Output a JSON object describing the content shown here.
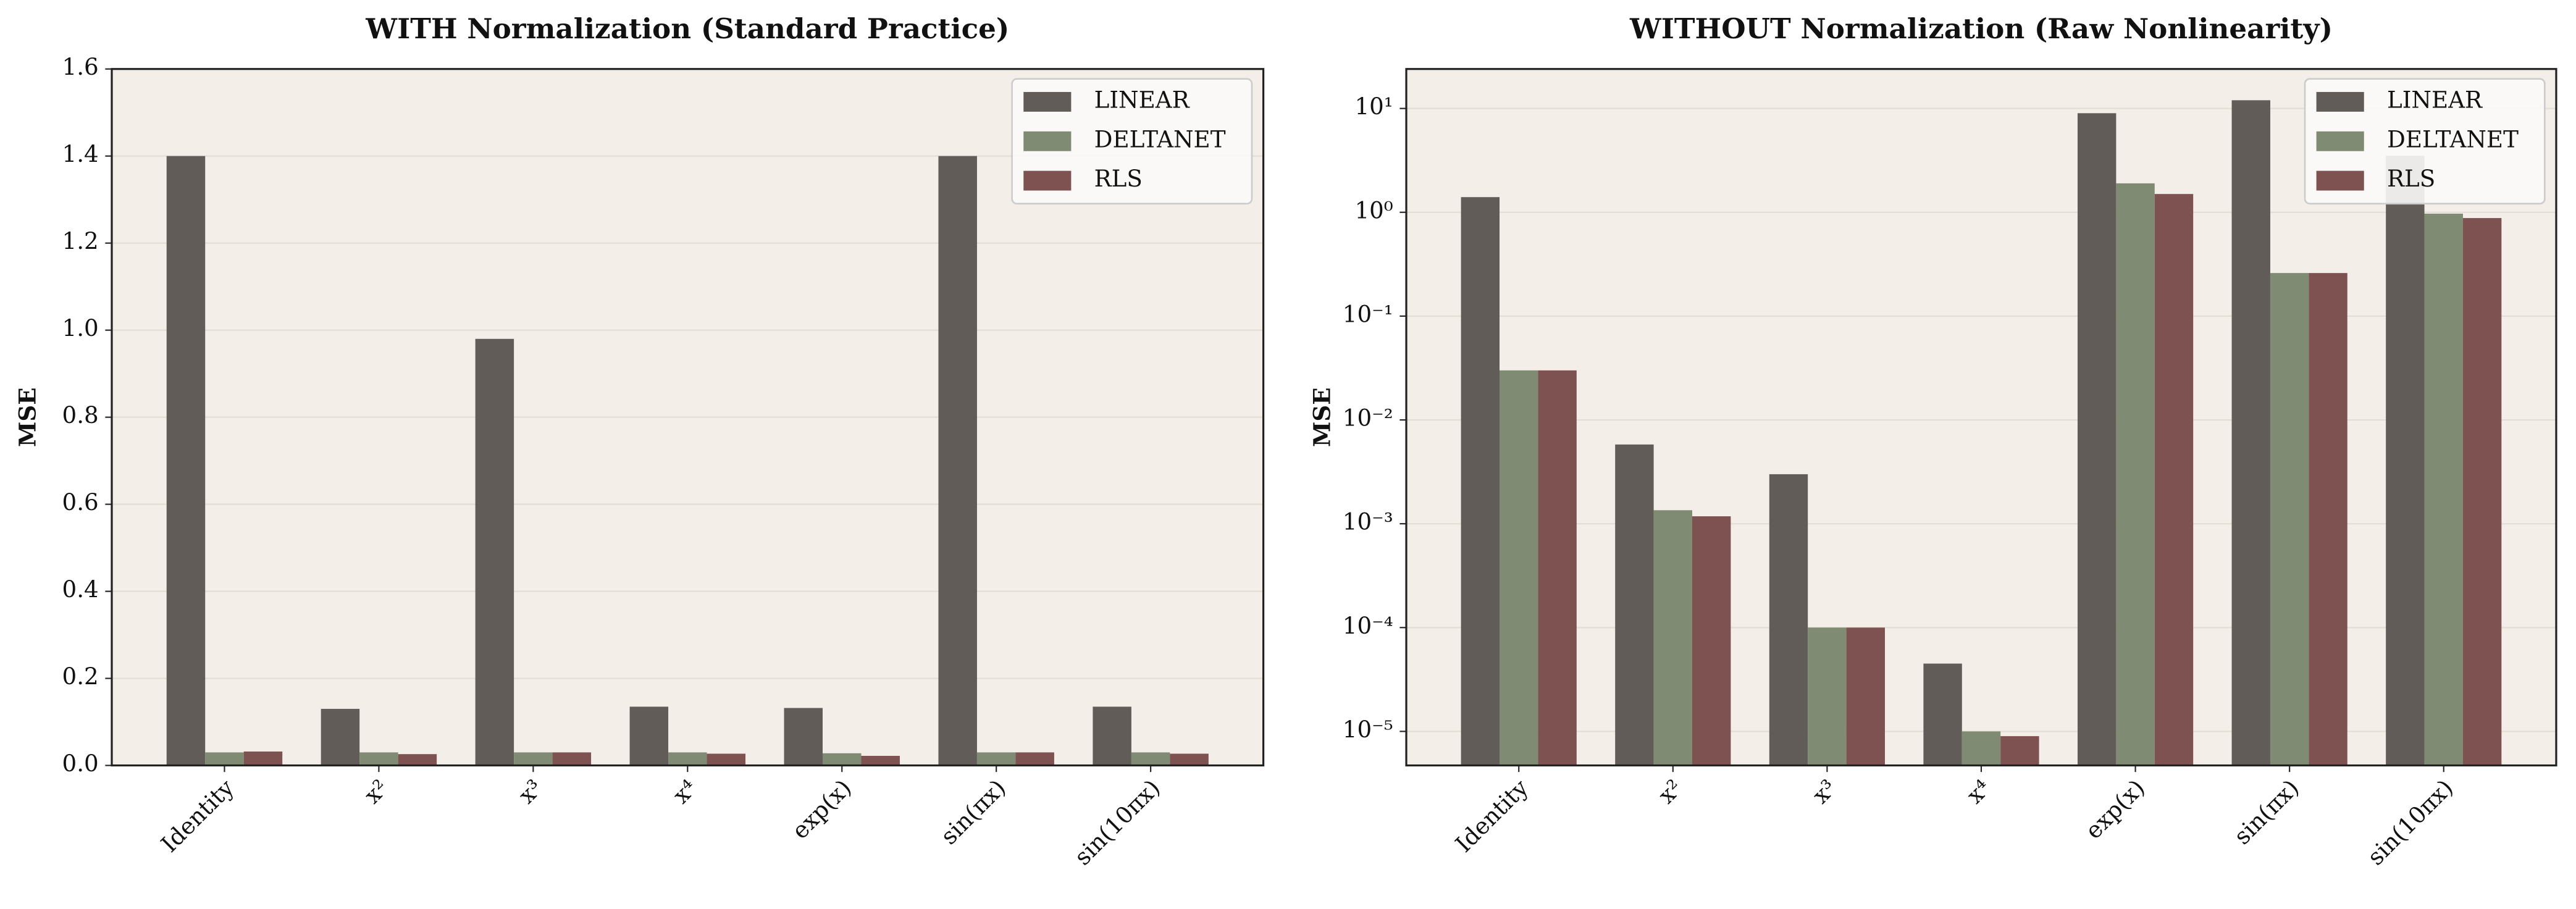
{
  "chart_data": [
    {
      "type": "bar",
      "title": "WITH Normalization (Standard Practice)",
      "ylabel": "MSE",
      "categories": [
        "Identity",
        "x²",
        "x³",
        "x⁴",
        "exp(x)",
        "sin(πx)",
        "sin(10πx)"
      ],
      "series": [
        {
          "name": "LINEAR",
          "color": "#625c58",
          "values": [
            1.4,
            0.13,
            0.98,
            0.135,
            0.132,
            1.4,
            0.135
          ]
        },
        {
          "name": "DELTANET",
          "color": "#7f8b73",
          "values": [
            0.03,
            0.03,
            0.03,
            0.03,
            0.028,
            0.03,
            0.03
          ]
        },
        {
          "name": "RLS",
          "color": "#7f5252",
          "values": [
            0.032,
            0.026,
            0.03,
            0.027,
            0.022,
            0.03,
            0.027
          ]
        }
      ],
      "yscale": "linear",
      "ylim": [
        0,
        1.6
      ],
      "yticks": [
        {
          "value": 0,
          "label": "0.0"
        },
        0.2,
        0.4,
        0.6,
        0.8,
        {
          "value": 1,
          "label": "1.0"
        },
        1.2,
        1.4,
        1.6
      ],
      "grid": true,
      "legend": "upper right"
    },
    {
      "type": "bar",
      "title": "WITHOUT Normalization (Raw Nonlinearity)",
      "ylabel": "MSE",
      "categories": [
        "Identity",
        "x²",
        "x³",
        "x⁴",
        "exp(x)",
        "sin(πx)",
        "sin(10πx)"
      ],
      "series": [
        {
          "name": "LINEAR",
          "color": "#625c58",
          "values": [
            1.4,
            0.0058,
            0.003,
            4.5e-05,
            9,
            12,
            3.5
          ]
        },
        {
          "name": "DELTANET",
          "color": "#7f8b73",
          "values": [
            0.03,
            0.00135,
            0.0001,
            1e-05,
            1.9,
            0.26,
            0.97
          ]
        },
        {
          "name": "RLS",
          "color": "#7f5252",
          "values": [
            0.03,
            0.00118,
            0.0001,
            9e-06,
            1.5,
            0.26,
            0.88
          ]
        }
      ],
      "yscale": "log",
      "ylim": [
        4.7e-06,
        24
      ],
      "yticks": [
        {
          "value": 1e-05,
          "label": "10⁻⁵"
        },
        {
          "value": 0.0001,
          "label": "10⁻⁴"
        },
        {
          "value": 0.001,
          "label": "10⁻³"
        },
        {
          "value": 0.01,
          "label": "10⁻²"
        },
        {
          "value": 0.1,
          "label": "10⁻¹"
        },
        {
          "value": 1,
          "label": "10⁰"
        },
        {
          "value": 10,
          "label": "10¹"
        }
      ],
      "grid": true,
      "legend": "upper right"
    }
  ]
}
